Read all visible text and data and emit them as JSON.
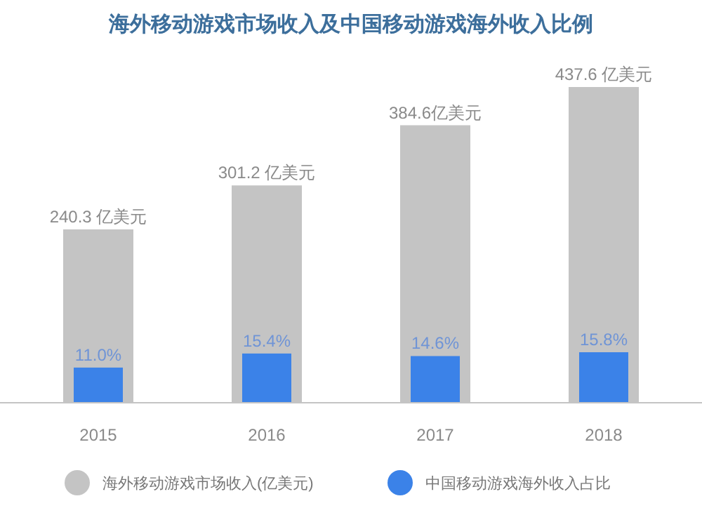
{
  "chart_data": {
    "type": "bar",
    "title": "海外移动游戏市场收入及中国移动游戏海外收入比例",
    "categories": [
      "2015",
      "2016",
      "2017",
      "2018"
    ],
    "series": [
      {
        "name": "海外移动游戏市场收入(亿美元)",
        "color": "#c4c4c4",
        "values": [
          240.3,
          301.2,
          384.6,
          437.6
        ],
        "value_labels": [
          "240.3 亿美元",
          "301.2 亿美元",
          "384.6亿美元",
          "437.6 亿美元"
        ]
      },
      {
        "name": "中国移动游戏海外收入占比",
        "color": "#3b82e8",
        "axis": "y2",
        "values": [
          11.0,
          15.4,
          14.6,
          15.8
        ],
        "value_labels": [
          "11.0%",
          "15.4%",
          "14.6%",
          "15.8%"
        ]
      }
    ],
    "legend": "bottom"
  }
}
